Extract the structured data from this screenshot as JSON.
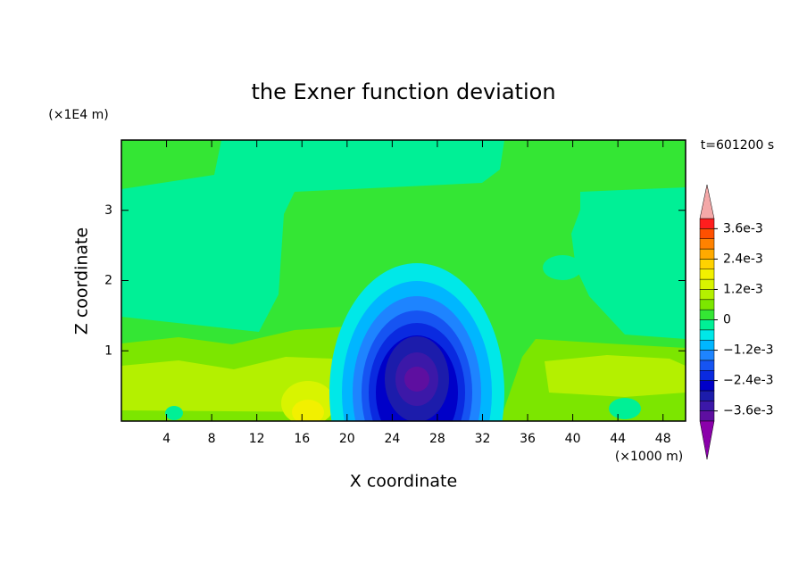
{
  "chart_data": {
    "type": "contour",
    "title": "the Exner function deviation",
    "xlabel": "X coordinate",
    "ylabel": "Z coordinate",
    "x_unit": "(×1000 m)",
    "y_unit": "(×1E4 m)",
    "annotation": "t=601200 s",
    "xlim": [
      0,
      50
    ],
    "xticks": [
      4,
      8,
      12,
      16,
      20,
      24,
      28,
      32,
      36,
      40,
      44,
      48
    ],
    "ylim": [
      0,
      4
    ],
    "yticks": [
      1,
      2,
      3
    ],
    "colorbar": {
      "levels": [
        -0.004,
        -0.0036,
        -0.0032,
        -0.0028,
        -0.0024,
        -0.002,
        -0.0016,
        -0.0012,
        -0.0008,
        -0.0004,
        0,
        0.0004,
        0.0008,
        0.0012,
        0.0016,
        0.002,
        0.0024,
        0.0028,
        0.0032,
        0.0036,
        0.004
      ],
      "colors": [
        "#5e0fa0",
        "#3c18a8",
        "#1c1cab",
        "#0000c8",
        "#0a2ae0",
        "#1654f2",
        "#1e84ff",
        "#00b6ff",
        "#00e8e8",
        "#00f096",
        "#34e634",
        "#7ce600",
        "#b4f000",
        "#d8f400",
        "#f2f000",
        "#ffd200",
        "#ffaa00",
        "#ff8200",
        "#ff5000",
        "#ff1e1e"
      ],
      "over_color": "#f4a8a8",
      "under_color": "#8a00aa",
      "ticks": [
        {
          "value": 0.0036,
          "label": "3.6e-3"
        },
        {
          "value": 0.0024,
          "label": "2.4e-3"
        },
        {
          "value": 0.0012,
          "label": "1.2e-3"
        },
        0,
        {
          "value": -0.0012,
          "label": "−1.2e-3"
        },
        {
          "value": -0.0024,
          "label": "−2.4e-3"
        },
        {
          "value": -0.0036,
          "label": "−3.6e-3"
        }
      ]
    }
  }
}
